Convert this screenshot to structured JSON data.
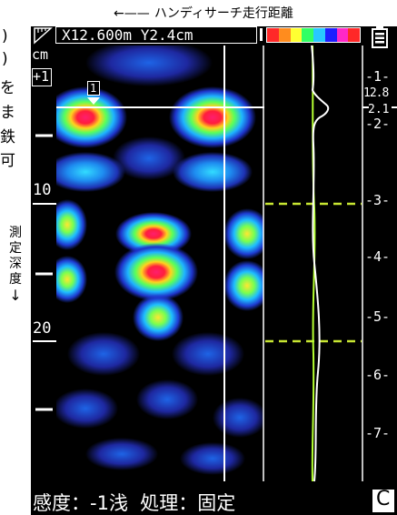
{
  "annotations": {
    "top_caption": "ハンディサーチ走行距離",
    "top_arrow": "←——",
    "side_caption_chars": [
      "測",
      "定",
      "深",
      "度"
    ],
    "side_arrow": "↓",
    "left_fragments": [
      ")",
      ")",
      "を",
      "ま",
      "鉄",
      "可"
    ]
  },
  "header": {
    "coordinates": "X12.600m Y2.4cm",
    "unit": "cm"
  },
  "depth_scale": {
    "cursor_label": "+1",
    "labels": [
      "10",
      "20"
    ]
  },
  "target_marker": {
    "label": "1"
  },
  "right_scale": {
    "labels": [
      "-1-",
      "-2-",
      "-3-",
      "-4-",
      "-5-",
      "-6-",
      "-7-"
    ],
    "readout_depth": "12.8",
    "readout_value": "2.1"
  },
  "status_bar": {
    "text": "感度：-1浅  処理：固定",
    "mode": "C"
  },
  "colors": {
    "screen_bg": "#000000",
    "cursor_line": "#ffffff",
    "dashed_level": "#c8e632",
    "waveform_green": "#b4ff32",
    "waveform_white": "#ffffff"
  },
  "color_legend": [
    "#ff2828",
    "#ff8c1e",
    "#ffff32",
    "#32ff64",
    "#28c8ff",
    "#1e1eff",
    "#ff28c8",
    "#ff2828"
  ],
  "icons": {
    "corner": "fold-corner-icon",
    "battery": "battery-icon"
  }
}
